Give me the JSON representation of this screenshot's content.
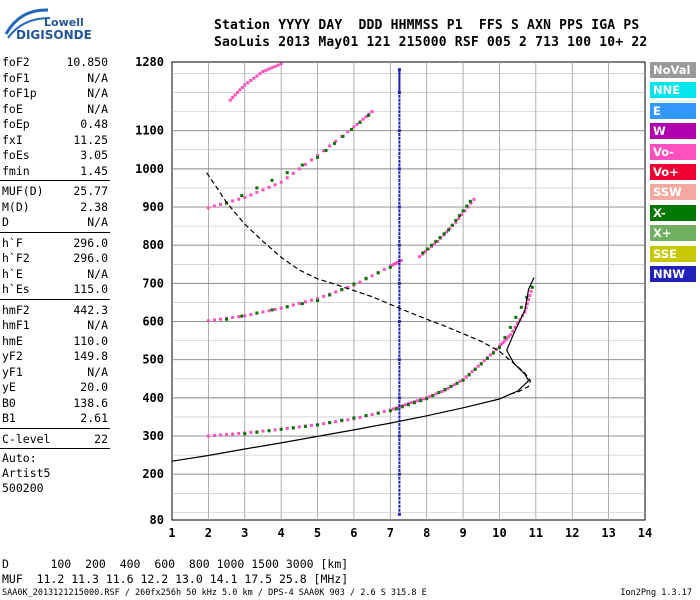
{
  "logo": {
    "line1": "Lowell",
    "line2": "DIGISONDE"
  },
  "header": {
    "line1": "Station YYYY DAY  DDD HHMMSS P1  FFS S AXN PPS IGA PS",
    "line2": "SaoLuis 2013 May01 121 215000 RSF 005 2 713 100 10+ 22"
  },
  "params": {
    "group1": [
      {
        "label": "foF2",
        "value": "10.850"
      },
      {
        "label": "foF1",
        "value": "N/A"
      },
      {
        "label": "foF1p",
        "value": "N/A"
      },
      {
        "label": "foE",
        "value": "N/A"
      },
      {
        "label": "foEp",
        "value": "0.48"
      },
      {
        "label": "fxI",
        "value": "11.25"
      },
      {
        "label": "foEs",
        "value": "3.05"
      },
      {
        "label": "fmin",
        "value": "1.45"
      }
    ],
    "group2": [
      {
        "label": "MUF(D)",
        "value": "25.77"
      },
      {
        "label": "M(D)",
        "value": "2.38"
      },
      {
        "label": "D",
        "value": "N/A"
      }
    ],
    "group3": [
      {
        "label": "h`F",
        "value": "296.0"
      },
      {
        "label": "h`F2",
        "value": "296.0"
      },
      {
        "label": "h`E",
        "value": "N/A"
      },
      {
        "label": "h`Es",
        "value": "115.0"
      }
    ],
    "group4": [
      {
        "label": "hmF2",
        "value": "442.3"
      },
      {
        "label": "hmF1",
        "value": "N/A"
      },
      {
        "label": "hmE",
        "value": "110.0"
      },
      {
        "label": "yF2",
        "value": "149.8"
      },
      {
        "label": "yF1",
        "value": "N/A"
      },
      {
        "label": "yE",
        "value": "20.0"
      },
      {
        "label": "B0",
        "value": "138.6"
      },
      {
        "label": "B1",
        "value": "2.61"
      }
    ],
    "group5": [
      {
        "label": "C-level",
        "value": "22"
      }
    ],
    "scaler": [
      "Auto:",
      "Artist5",
      "500200"
    ]
  },
  "bottom": {
    "line1": "D      100  200  400  600  800 1000 1500 3000 [km]",
    "line2": "MUF  11.2 11.3 11.6 12.2 13.0 14.1 17.5 25.8 [MHz]"
  },
  "footer": {
    "left": "SAA0K_2013121215000.RSF / 260fx256h 50 kHz 5.0 km / DPS-4 SAA0K 903 / 2.6 S 315.8 E",
    "right": "Ion2Png 1.3.17"
  },
  "legend": [
    {
      "label": "NoVal",
      "color": "#999999"
    },
    {
      "label": "NNE",
      "color": "#00e5ee"
    },
    {
      "label": "E",
      "color": "#3399ff"
    },
    {
      "label": "W",
      "color": "#b000b0"
    },
    {
      "label": "Vo-",
      "color": "#ff50c0"
    },
    {
      "label": "Vo+",
      "color": "#ee0033"
    },
    {
      "label": "SSW",
      "color": "#f4a8a0"
    },
    {
      "label": "X-",
      "color": "#007700"
    },
    {
      "label": "X+",
      "color": "#70b060"
    },
    {
      "label": "SSE",
      "color": "#c8c800"
    },
    {
      "label": "NNW",
      "color": "#2020bb"
    }
  ],
  "chart_data": {
    "type": "scatter",
    "xlim": [
      1,
      14
    ],
    "ylim": [
      80,
      1280
    ],
    "x_ticks": [
      1,
      2,
      3,
      4,
      5,
      6,
      7,
      8,
      9,
      10,
      11,
      12,
      13,
      14
    ],
    "y_ticks": [
      80,
      200,
      300,
      400,
      500,
      600,
      700,
      800,
      900,
      1000,
      1100,
      1280
    ],
    "grid": true,
    "series": [
      {
        "color": "#ff50c0",
        "points": [
          [
            2.0,
            300
          ],
          [
            3,
            308
          ],
          [
            4,
            318
          ],
          [
            5,
            330
          ],
          [
            6,
            345
          ],
          [
            7,
            368
          ],
          [
            7.5,
            385
          ],
          [
            8,
            400
          ],
          [
            8.5,
            420
          ],
          [
            9,
            448
          ],
          [
            9.5,
            490
          ],
          [
            10,
            535
          ],
          [
            10.3,
            565
          ],
          [
            10.7,
            625
          ],
          [
            10.9,
            690
          ]
        ]
      },
      {
        "color": "#ff50c0",
        "points": [
          [
            2.0,
            602
          ],
          [
            3,
            615
          ],
          [
            4,
            635
          ],
          [
            5,
            660
          ],
          [
            6,
            695
          ],
          [
            7,
            745
          ],
          [
            7.3,
            760
          ]
        ]
      },
      {
        "color": "#ff50c0",
        "points": [
          [
            2.0,
            898
          ],
          [
            3,
            925
          ],
          [
            4,
            965
          ],
          [
            5,
            1035
          ],
          [
            6,
            1110
          ],
          [
            6.5,
            1150
          ]
        ]
      },
      {
        "color": "#ff50c0",
        "points": [
          [
            7.8,
            770
          ],
          [
            8.3,
            810
          ],
          [
            8.8,
            860
          ],
          [
            9.3,
            920
          ]
        ]
      },
      {
        "color": "#ff50c0",
        "points": [
          [
            2.6,
            1180
          ],
          [
            3,
            1220
          ],
          [
            3.5,
            1255
          ],
          [
            4,
            1275
          ]
        ]
      },
      {
        "color": "#007700",
        "points": [
          [
            3,
            306
          ],
          [
            5,
            329
          ],
          [
            7,
            366
          ],
          [
            8,
            398
          ],
          [
            9,
            446
          ],
          [
            10,
            532
          ],
          [
            10.9,
            690
          ]
        ]
      },
      {
        "color": "#007700",
        "points": [
          [
            2.5,
            606
          ],
          [
            5,
            655
          ],
          [
            7,
            742
          ]
        ]
      },
      {
        "color": "#007700",
        "points": [
          [
            2.5,
            910
          ],
          [
            5,
            1030
          ],
          [
            6.4,
            1140
          ]
        ]
      },
      {
        "color": "#007700",
        "points": [
          [
            7.9,
            780
          ],
          [
            8.6,
            840
          ],
          [
            9.2,
            915
          ]
        ]
      },
      {
        "color": "#2020bb",
        "points": [
          [
            7.25,
            95
          ],
          [
            7.25,
            200
          ],
          [
            7.25,
            300
          ],
          [
            7.25,
            400
          ],
          [
            7.25,
            500
          ],
          [
            7.25,
            600
          ],
          [
            7.25,
            700
          ],
          [
            7.25,
            800
          ],
          [
            7.25,
            900
          ],
          [
            7.25,
            1000
          ],
          [
            7.25,
            1100
          ],
          [
            7.25,
            1200
          ],
          [
            7.25,
            1260
          ]
        ]
      }
    ],
    "lines": [
      {
        "style": "solid",
        "points": [
          [
            1,
            234
          ],
          [
            2,
            249
          ],
          [
            3,
            266
          ],
          [
            4,
            282
          ],
          [
            5,
            299
          ],
          [
            6,
            316
          ],
          [
            7,
            334
          ],
          [
            8,
            353
          ],
          [
            9,
            374
          ],
          [
            10,
            397
          ],
          [
            10.5,
            418
          ],
          [
            10.8,
            445
          ],
          [
            10.7,
            462
          ],
          [
            10.4,
            490
          ],
          [
            10.2,
            525
          ],
          [
            10.4,
            570
          ],
          [
            10.7,
            630
          ],
          [
            10.8,
            685
          ],
          [
            10.95,
            715
          ]
        ]
      },
      {
        "style": "dashed",
        "points": [
          [
            1.95,
            990
          ],
          [
            2.2,
            955
          ],
          [
            2.5,
            912
          ],
          [
            3,
            855
          ],
          [
            3.5,
            810
          ],
          [
            4,
            768
          ],
          [
            4.5,
            735
          ],
          [
            5,
            712
          ],
          [
            5.5,
            697
          ],
          [
            6,
            681
          ],
          [
            6.5,
            665
          ],
          [
            7,
            645
          ],
          [
            7.5,
            625
          ],
          [
            8,
            606
          ],
          [
            8.5,
            588
          ],
          [
            9,
            568
          ],
          [
            9.5,
            548
          ],
          [
            10,
            522
          ],
          [
            10.4,
            490
          ],
          [
            10.7,
            465
          ],
          [
            10.85,
            445
          ],
          [
            10.8,
            430
          ],
          [
            10.5,
            415
          ],
          [
            10.2,
            408
          ]
        ]
      }
    ]
  }
}
